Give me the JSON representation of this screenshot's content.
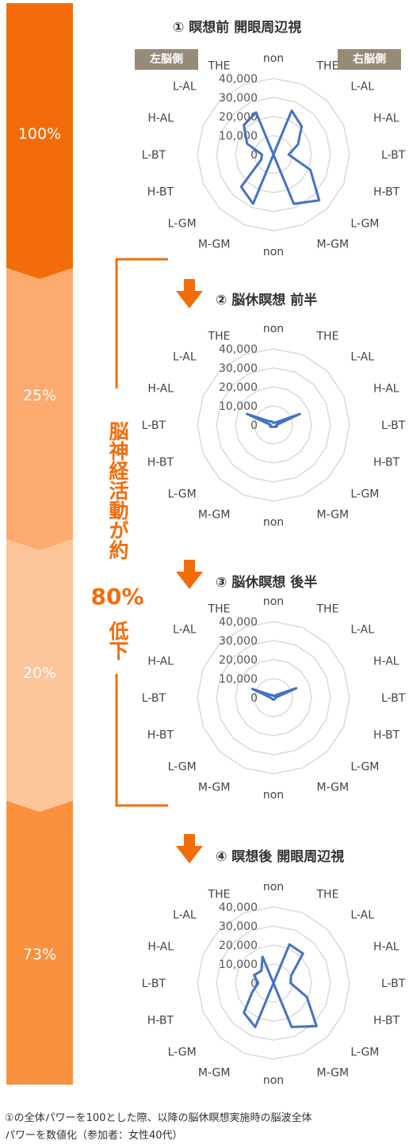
{
  "column": {
    "colors": {
      "seg1": "#f26d0a",
      "seg2": "#fcaa70",
      "seg3": "#fdc59a",
      "seg4": "#f9913f"
    },
    "segments": [
      {
        "label": "100%"
      },
      {
        "label": "25%"
      },
      {
        "label": "20%"
      },
      {
        "label": "73%"
      }
    ]
  },
  "side_labels": {
    "left": "左脳側",
    "right": "右脳側"
  },
  "annotation": {
    "line1": "脳神経活動が約",
    "percent": "80%",
    "line2": "低下"
  },
  "caption": {
    "line1": "①の全体パワーを100とした際、以降の脳休瞑想実施時の脳波全体",
    "line2": "パワーを数値化（参加者：女性40代）"
  },
  "colors": {
    "accent": "#f26d0a",
    "line": "#4472c4",
    "grid": "#d9d9d9",
    "badge": "#978a77"
  },
  "chart_data": [
    {
      "type": "radar",
      "title": "① 瞑想前 開眼周辺視",
      "axes": [
        "non",
        "THE",
        "L-AL",
        "H-AL",
        "L-BT",
        "H-BT",
        "L-GM",
        "M-GM",
        "non",
        "M-GM",
        "L-GM",
        "H-BT",
        "L-BT",
        "H-AL",
        "L-AL",
        "THE"
      ],
      "tick_labels": [
        "0",
        "10,000",
        "20,000",
        "30,000",
        "40,000"
      ],
      "range": [
        0,
        40000
      ],
      "values": [
        0,
        25000,
        21000,
        14000,
        8000,
        21000,
        34000,
        28000,
        0,
        28000,
        24000,
        7000,
        6000,
        15000,
        22000,
        24000
      ]
    },
    {
      "type": "radar",
      "title": "② 脳休瞑想 前半",
      "axes": [
        "non",
        "THE",
        "L-AL",
        "H-AL",
        "L-BT",
        "H-BT",
        "L-GM",
        "M-GM",
        "non",
        "M-GM",
        "L-GM",
        "H-BT",
        "L-BT",
        "H-AL",
        "L-AL",
        "THE"
      ],
      "tick_labels": [
        "0",
        "10,000",
        "20,000",
        "30,000",
        "40,000"
      ],
      "range": [
        0,
        40000
      ],
      "values": [
        1000,
        1500,
        2000,
        15000,
        1500,
        2000,
        1500,
        1000,
        1000,
        1000,
        1500,
        2000,
        1500,
        15000,
        2500,
        2000
      ]
    },
    {
      "type": "radar",
      "title": "③ 脳休瞑想 後半",
      "axes": [
        "non",
        "THE",
        "L-AL",
        "H-AL",
        "L-BT",
        "H-BT",
        "L-GM",
        "M-GM",
        "non",
        "M-GM",
        "L-GM",
        "H-BT",
        "L-BT",
        "H-AL",
        "L-AL",
        "THE"
      ],
      "tick_labels": [
        "0",
        "10,000",
        "20,000",
        "30,000",
        "40,000"
      ],
      "range": [
        0,
        40000
      ],
      "values": [
        1000,
        1000,
        2000,
        13000,
        1000,
        1000,
        1000,
        1000,
        1000,
        1000,
        1000,
        1000,
        1500,
        12000,
        2000,
        1500
      ]
    },
    {
      "type": "radar",
      "title": "④ 瞑想後 開眼周辺視",
      "axes": [
        "non",
        "THE",
        "L-AL",
        "H-AL",
        "L-BT",
        "H-BT",
        "L-GM",
        "M-GM",
        "non",
        "M-GM",
        "L-GM",
        "H-BT",
        "L-BT",
        "H-AL",
        "L-AL",
        "THE"
      ],
      "tick_labels": [
        "0",
        "10,000",
        "20,000",
        "30,000",
        "40,000"
      ],
      "range": [
        0,
        40000
      ],
      "values": [
        0,
        22000,
        22000,
        10000,
        9000,
        19000,
        32000,
        25000,
        0,
        25000,
        22000,
        12000,
        8000,
        11000,
        9000,
        15000
      ]
    }
  ]
}
